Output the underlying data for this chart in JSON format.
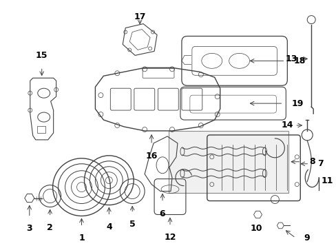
{
  "bg_color": "#ffffff",
  "line_color": "#404040",
  "text_color": "#000000",
  "figsize": [
    4.89,
    3.6
  ],
  "dpi": 100
}
